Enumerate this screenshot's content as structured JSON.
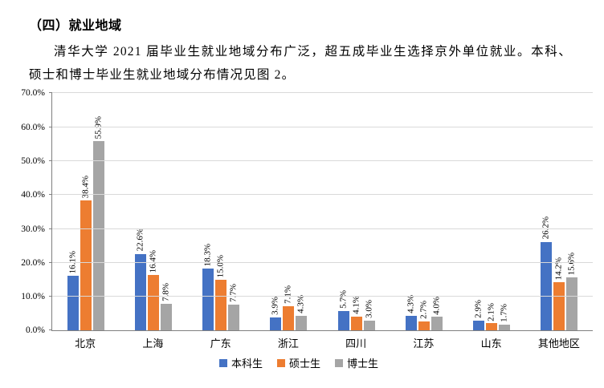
{
  "document": {
    "heading": "（四）就业地域",
    "paragraph": "清华大学 2021 届毕业生就业地域分布广泛，超五成毕业生选择京外单位就业。本科、硕士和博士毕业生就业地域分布情况见图 2。"
  },
  "chart_data": {
    "type": "bar",
    "title": "",
    "categories": [
      "北京",
      "上海",
      "广东",
      "浙江",
      "四川",
      "江苏",
      "山东",
      "其他地区"
    ],
    "series": [
      {
        "name": "本科生",
        "color": "#4472C4",
        "values": [
          16.1,
          22.6,
          18.3,
          3.9,
          5.7,
          4.3,
          2.9,
          26.2
        ]
      },
      {
        "name": "硕士生",
        "color": "#ED7D31",
        "values": [
          38.4,
          16.4,
          15.0,
          7.1,
          4.1,
          2.7,
          2.1,
          14.2
        ]
      },
      {
        "name": "博士生",
        "color": "#A5A5A5",
        "values": [
          55.9,
          7.8,
          7.7,
          4.3,
          3.0,
          4.0,
          1.7,
          15.6
        ]
      }
    ],
    "ylim": [
      0,
      70
    ],
    "ytick_step": 10,
    "ytick_labels": [
      "0.0%",
      "10.0%",
      "20.0%",
      "30.0%",
      "40.0%",
      "50.0%",
      "60.0%",
      "70.0%"
    ],
    "value_suffix": "%",
    "value_label_rotation": "vertical",
    "grid": true,
    "legend_position": "bottom",
    "colors": {
      "grid": "#D9D9D9",
      "axis": "#808080",
      "text": "#000000"
    }
  }
}
